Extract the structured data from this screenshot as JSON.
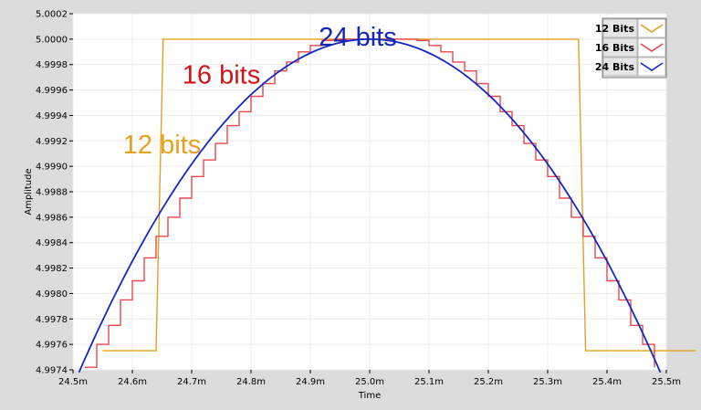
{
  "chart_data": {
    "type": "line",
    "xlabel": "Time",
    "ylabel": "Amplitude",
    "xlim": [
      0.0245,
      0.0255
    ],
    "ylim": [
      4.9974,
      5.0002
    ],
    "xticks": [
      0.0245,
      0.0246,
      0.0247,
      0.0248,
      0.0249,
      0.025,
      0.0251,
      0.0252,
      0.0253,
      0.0254,
      0.0255
    ],
    "xtick_labels": [
      "24.5m",
      "24.6m",
      "24.7m",
      "24.8m",
      "24.9m",
      "25.0m",
      "25.1m",
      "25.2m",
      "25.3m",
      "25.4m",
      "25.5m"
    ],
    "yticks": [
      4.9974,
      4.9976,
      4.9978,
      4.998,
      4.9982,
      4.9984,
      4.9986,
      4.9988,
      4.999,
      4.9992,
      4.9994,
      4.9996,
      4.9998,
      5.0,
      5.0002
    ],
    "ytick_labels": [
      "4.9974",
      "4.9976",
      "4.9978",
      "4.9980",
      "4.9982",
      "4.9984",
      "4.9986",
      "4.9988",
      "4.9990",
      "4.9992",
      "4.9994",
      "4.9996",
      "4.9998",
      "5.0000",
      "5.0002"
    ],
    "grid": true,
    "legend": "top-right",
    "series": [
      {
        "name": "12 Bits",
        "color": "#e6a020",
        "x": [
          0.02455,
          0.02464,
          0.024652,
          0.025352,
          0.025364,
          0.02555
        ],
        "y": [
          4.99755,
          4.99755,
          5.0,
          5.0,
          4.99755,
          4.99755
        ]
      },
      {
        "name": "16 Bits",
        "color": "#e8484e",
        "x": [
          0.02452,
          0.02454,
          0.02456,
          0.02458,
          0.0246,
          0.02462,
          0.02464,
          0.02466,
          0.02468,
          0.0247,
          0.02472,
          0.02474,
          0.02476,
          0.02478,
          0.0248,
          0.02482,
          0.02484,
          0.02486,
          0.02488,
          0.0249,
          0.02492,
          0.02494,
          0.02496,
          0.02498,
          0.025,
          0.02502,
          0.02504,
          0.02506,
          0.02508,
          0.0251,
          0.02512,
          0.02514,
          0.02516,
          0.02518,
          0.0252,
          0.02522,
          0.02524,
          0.02526,
          0.02528,
          0.0253,
          0.02532,
          0.02534,
          0.02536,
          0.02538,
          0.0254,
          0.02542,
          0.02544,
          0.02546,
          0.02548
        ],
        "y": [
          4.99742,
          4.9976,
          4.99775,
          4.99795,
          4.9981,
          4.99828,
          4.99845,
          4.9986,
          4.99875,
          4.99892,
          4.99905,
          4.99918,
          4.99932,
          4.99943,
          4.99955,
          4.99965,
          4.99975,
          4.99982,
          4.9999,
          4.99995,
          4.99999,
          5.0,
          5.0,
          5.0,
          5.0,
          5.0,
          5.0,
          5.0,
          4.99999,
          4.99995,
          4.9999,
          4.99982,
          4.99975,
          4.99965,
          4.99955,
          4.99943,
          4.99932,
          4.99918,
          4.99905,
          4.99892,
          4.99875,
          4.9986,
          4.99845,
          4.99828,
          4.9981,
          4.99795,
          4.99775,
          4.9976,
          4.99742
        ]
      },
      {
        "name": "24 Bits",
        "color": "#1428c8",
        "curve": "parabola",
        "peak_x": 0.025,
        "peak_y": 5.0,
        "x_range": [
          0.02451,
          0.02549
        ],
        "end_y": 4.99738
      }
    ],
    "annotations": [
      {
        "text": "12 bits",
        "color": "#e6a020",
        "x": 0.02465,
        "y": 4.9991
      },
      {
        "text": "16 bits",
        "color": "#d01418",
        "x": 0.02475,
        "y": 4.99965
      },
      {
        "text": "24 bits",
        "color": "#1428b4",
        "x": 0.02498,
        "y": 4.99995
      }
    ]
  }
}
